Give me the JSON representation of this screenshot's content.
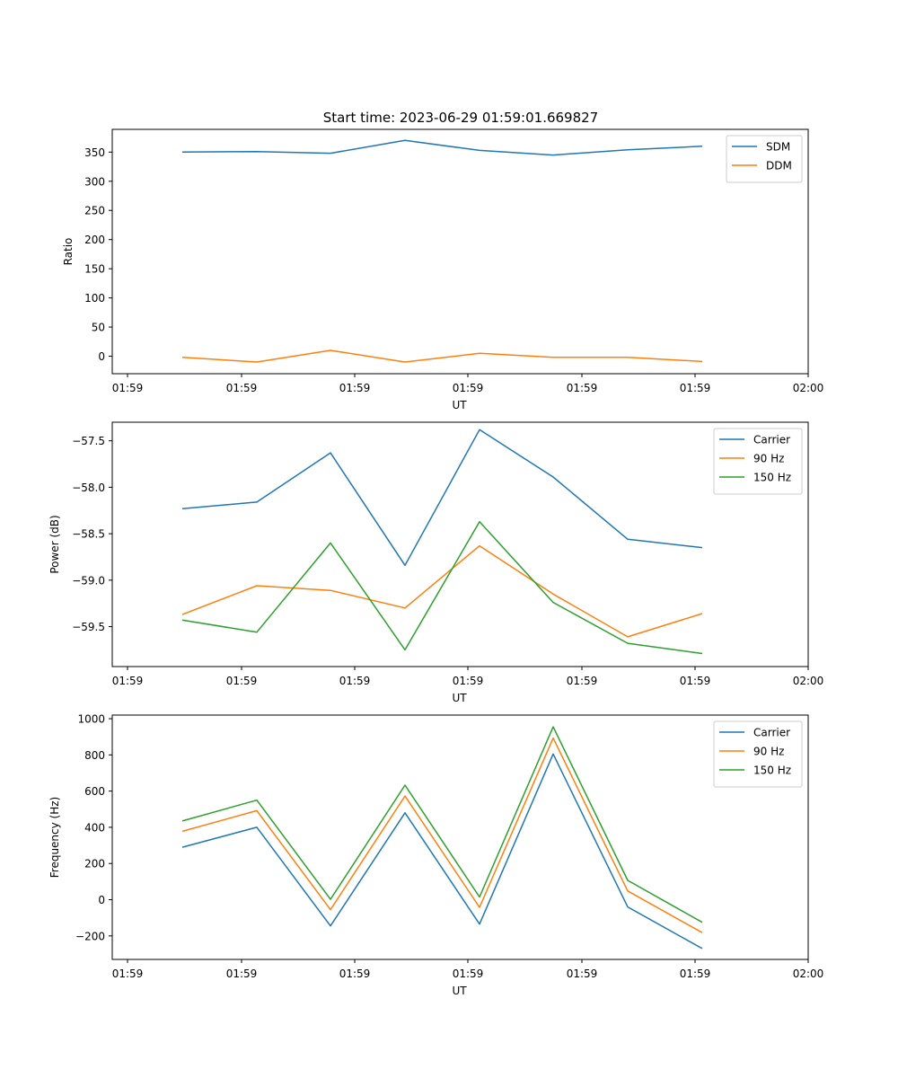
{
  "figure": {
    "title": "Start time: 2023-06-29 01:59:01.669827"
  },
  "colors": {
    "blue": "#1f77b4",
    "orange": "#ff7f0e",
    "green": "#2ca02c",
    "axes": "#000000",
    "legend_border": "#cccccc"
  },
  "chart_data": [
    {
      "type": "line",
      "title": "Start time: 2023-06-29 01:59:01.669827",
      "xlabel": "UT",
      "ylabel": "Ratio",
      "x_tick_labels": [
        "01:59",
        "01:59",
        "01:59",
        "01:59",
        "01:59",
        "01:59",
        "01:59"
      ],
      "x_last_tick_label": "02:00",
      "y_ticks": [
        0,
        50,
        100,
        150,
        200,
        250,
        300,
        350
      ],
      "ylim": [
        -30,
        389
      ],
      "legend_position": "top-right",
      "series": [
        {
          "name": "SDM",
          "color": "#1f77b4",
          "values": [
            350,
            351,
            348,
            370,
            353,
            345,
            354,
            360
          ]
        },
        {
          "name": "DDM",
          "color": "#ff7f0e",
          "values": [
            -2,
            -10,
            10,
            -10,
            5,
            -2,
            -2,
            -9
          ]
        }
      ]
    },
    {
      "type": "line",
      "title": "",
      "xlabel": "UT",
      "ylabel": "Power (dB)",
      "x_tick_labels": [
        "01:59",
        "01:59",
        "01:59",
        "01:59",
        "01:59",
        "01:59",
        "01:59"
      ],
      "x_last_tick_label": "02:00",
      "y_ticks": [
        -57.5,
        -58.0,
        -58.5,
        -59.0,
        -59.5
      ],
      "y_tick_labels": [
        "−57.5",
        "−58.0",
        "−58.5",
        "−59.0",
        "−59.5"
      ],
      "ylim": [
        -59.93,
        -57.3
      ],
      "legend_position": "top-right",
      "series": [
        {
          "name": "Carrier",
          "color": "#1f77b4",
          "values": [
            -58.23,
            -58.16,
            -57.63,
            -58.84,
            -57.38,
            -57.89,
            -58.56,
            -58.65
          ]
        },
        {
          "name": "90 Hz",
          "color": "#ff7f0e",
          "values": [
            -59.37,
            -59.06,
            -59.11,
            -59.3,
            -58.63,
            -59.15,
            -59.61,
            -59.36
          ]
        },
        {
          "name": "150 Hz",
          "color": "#2ca02c",
          "values": [
            -59.43,
            -59.56,
            -58.6,
            -59.75,
            -58.37,
            -59.24,
            -59.68,
            -59.79
          ]
        }
      ]
    },
    {
      "type": "line",
      "title": "",
      "xlabel": "UT",
      "ylabel": "Frequency (Hz)",
      "x_tick_labels": [
        "01:59",
        "01:59",
        "01:59",
        "01:59",
        "01:59",
        "01:59",
        "01:59"
      ],
      "x_last_tick_label": "02:00",
      "y_ticks": [
        -200,
        0,
        200,
        400,
        600,
        800,
        1000
      ],
      "y_tick_labels": [
        "−200",
        "0",
        "200",
        "400",
        "600",
        "800",
        "1000"
      ],
      "ylim": [
        -330,
        1020
      ],
      "legend_position": "top-right",
      "series": [
        {
          "name": "Carrier",
          "color": "#1f77b4",
          "values": [
            290,
            400,
            -145,
            480,
            -135,
            805,
            -40,
            -270
          ]
        },
        {
          "name": "90 Hz",
          "color": "#ff7f0e",
          "values": [
            378,
            492,
            -55,
            573,
            -42,
            893,
            48,
            -182
          ]
        },
        {
          "name": "150 Hz",
          "color": "#2ca02c",
          "values": [
            435,
            550,
            2,
            633,
            15,
            955,
            107,
            -125
          ]
        }
      ]
    }
  ]
}
